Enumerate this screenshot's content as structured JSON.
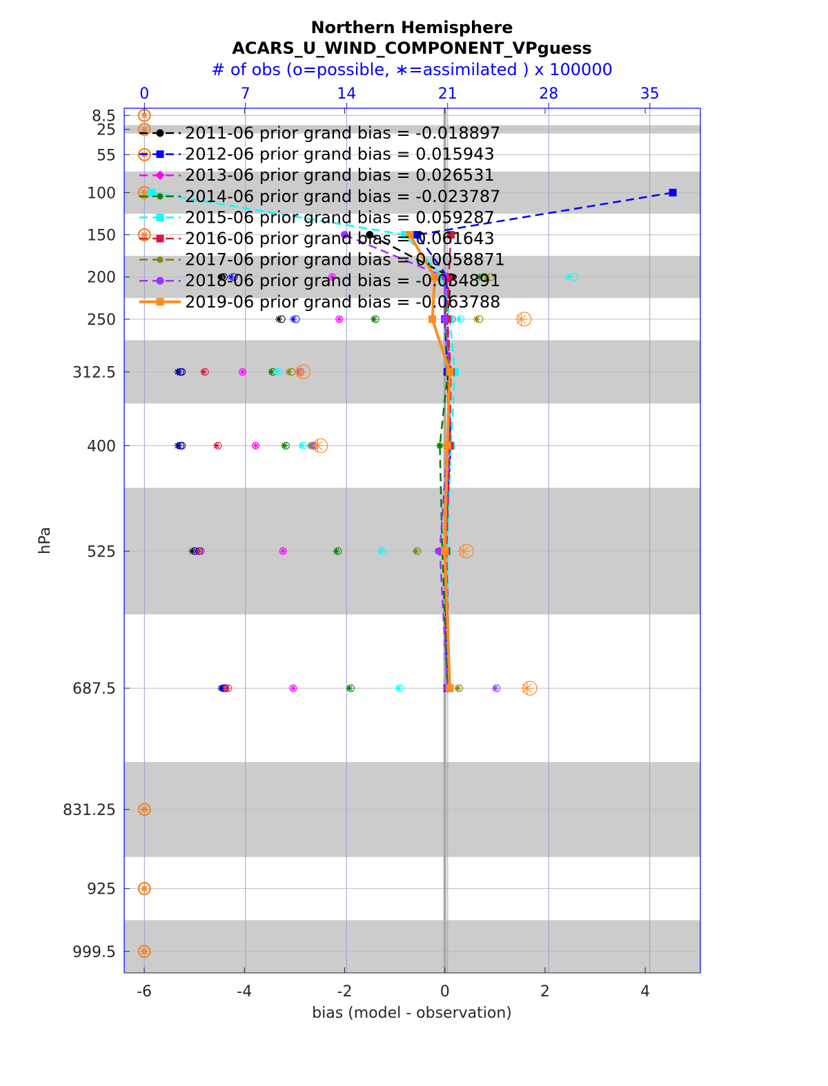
{
  "chart_data": {
    "type": "line",
    "title": "Northern Hemisphere",
    "subtitle": "ACARS_U_WIND_COMPONENT_VPguess",
    "top_axis_label": "# of obs (o=possible, ∗=assimilated ) x 100000",
    "top_axis_ticks": [
      "0",
      "7",
      "14",
      "21",
      "28",
      "35"
    ],
    "top_axis_tick_values": [
      0,
      7,
      14,
      21,
      28,
      35
    ],
    "top_xlim": [
      -1.4,
      38.5
    ],
    "xlabel": "bias (model - observation)",
    "ylabel": "hPa",
    "xlim": [
      -6.4,
      5.1
    ],
    "x_ticks": [
      "-6",
      "-4",
      "-2",
      "0",
      "2",
      "4"
    ],
    "x_tick_values": [
      -6,
      -4,
      -2,
      0,
      2,
      4
    ],
    "ylim": [
      0,
      1025
    ],
    "y_direction": "reverse",
    "y_ticks": [
      "8.5",
      "25",
      "55",
      "100",
      "150",
      "200",
      "250",
      "312.5",
      "400",
      "525",
      "687.5",
      "831.25",
      "925",
      "999.5"
    ],
    "y_tick_values": [
      8.5,
      25,
      55,
      100,
      150,
      200,
      250,
      312.5,
      400,
      525,
      687.5,
      831.25,
      925,
      999.5
    ],
    "shaded_bands": [
      [
        20,
        30
      ],
      [
        75,
        125
      ],
      [
        175,
        225
      ],
      [
        275,
        350
      ],
      [
        450,
        600
      ],
      [
        775,
        887.5
      ],
      [
        962.5,
        1037.5
      ]
    ],
    "zero_line": 0,
    "legend_position": "top-left",
    "series": [
      {
        "name": "2011-06 prior grand bias = -0.018897",
        "color": "#000000",
        "marker": "circle",
        "dash": true,
        "levels": [
          150,
          200,
          250,
          312.5,
          400,
          525,
          687.5
        ],
        "bias": [
          -1.5,
          0.12,
          0.05,
          0.08,
          0.05,
          0.0,
          0.05
        ],
        "possible": [
          null,
          5.5,
          9.5,
          2.5,
          2.5,
          3.5,
          5.5
        ],
        "assimilated": [
          null,
          5.3,
          9.3,
          2.3,
          2.3,
          3.3,
          5.3
        ]
      },
      {
        "name": "2012-06 prior grand bias = 0.015943",
        "color": "#0000ff",
        "marker": "square",
        "dash": true,
        "levels": [
          100,
          150,
          200,
          250,
          312.5,
          400,
          525,
          687.5
        ],
        "bias": [
          4.55,
          -0.55,
          0.05,
          0.0,
          0.05,
          0.12,
          0.0,
          0.05
        ],
        "possible": [
          null,
          null,
          6.2,
          10.5,
          2.6,
          2.6,
          3.8,
          5.6
        ],
        "assimilated": [
          null,
          null,
          6.0,
          10.3,
          2.4,
          2.4,
          3.6,
          5.4
        ]
      },
      {
        "name": "2013-06 prior grand bias = 0.026531",
        "color": "#ff00ff",
        "marker": "diamond",
        "dash": true,
        "levels": [
          200,
          250,
          312.5,
          400,
          525,
          687.5
        ],
        "bias": [
          0.05,
          0.05,
          0.1,
          0.08,
          0.0,
          0.05
        ],
        "possible": [
          13.0,
          13.5,
          6.8,
          7.7,
          9.6,
          10.3
        ],
        "assimilated": [
          13.0,
          13.5,
          6.8,
          7.7,
          9.6,
          10.3
        ]
      },
      {
        "name": "2014-06 prior grand bias = -0.023787",
        "color": "#008000",
        "marker": "star",
        "dash": true,
        "levels": [
          200,
          250,
          312.5,
          400,
          525,
          687.5
        ],
        "bias": [
          0.0,
          0.02,
          0.06,
          -0.1,
          -0.05,
          0.05
        ],
        "possible": [
          23.5,
          16.0,
          8.9,
          9.8,
          13.4,
          14.3
        ],
        "assimilated": [
          23.2,
          15.9,
          8.8,
          9.7,
          13.3,
          14.2
        ]
      },
      {
        "name": "2015-06 prior grand bias = 0.059287",
        "color": "#00ffff",
        "marker": "square",
        "dash": true,
        "levels": [
          100,
          150,
          200,
          250,
          312.5,
          400,
          525,
          687.5
        ],
        "bias": [
          -5.85,
          -0.8,
          -0.05,
          0.1,
          0.2,
          0.12,
          0.05,
          0.08
        ],
        "possible": [
          null,
          null,
          29.8,
          21.9,
          9.3,
          11.0,
          16.5,
          17.7
        ],
        "assimilated": [
          null,
          null,
          29.4,
          21.8,
          9.2,
          10.9,
          16.4,
          17.6
        ]
      },
      {
        "name": "2016-06 prior grand bias = 0.061643",
        "color": "#dc143c",
        "marker": "square",
        "dash": true,
        "levels": [
          150,
          200,
          250,
          312.5,
          400,
          525,
          687.5
        ],
        "bias": [
          0.12,
          0.08,
          0.05,
          0.12,
          0.1,
          0.03,
          0.1
        ],
        "possible": [
          null,
          null,
          21.3,
          4.2,
          5.1,
          3.9,
          5.8
        ],
        "assimilated": [
          null,
          null,
          21.1,
          4.1,
          5.0,
          3.8,
          5.7
        ]
      },
      {
        "name": "2017-06 prior grand bias = 0.0058871",
        "color": "#808000",
        "marker": "star",
        "dash": true,
        "levels": [
          200,
          250,
          312.5,
          400,
          525,
          687.5
        ],
        "bias": [
          0.0,
          0.0,
          0.1,
          0.05,
          0.0,
          0.1
        ],
        "possible": [
          24.0,
          23.2,
          10.2,
          11.6,
          18.9,
          21.8
        ],
        "assimilated": [
          23.7,
          23.0,
          10.0,
          11.5,
          18.8,
          21.7
        ]
      },
      {
        "name": "2018-06 prior grand bias = -0.034891",
        "color": "#9b30ff",
        "marker": "circle",
        "dash": true,
        "levels": [
          150,
          200,
          250,
          312.5,
          400,
          525,
          687.5
        ],
        "bias": [
          -2.0,
          0.0,
          0.0,
          0.1,
          0.05,
          -0.1,
          0.05
        ],
        "possible": [
          null,
          null,
          21.1,
          10.8,
          11.8,
          20.4,
          24.4
        ],
        "assimilated": [
          null,
          null,
          21.0,
          10.7,
          11.7,
          20.3,
          24.3
        ]
      },
      {
        "name": "2019-06 prior grand bias = -0.063788",
        "color": "#ff8c1a",
        "marker": "square",
        "dash": false,
        "levels": [
          150,
          200,
          250,
          312.5,
          400,
          525,
          687.5
        ],
        "bias": [
          -0.7,
          -0.2,
          -0.25,
          0.1,
          0.05,
          0.0,
          0.1
        ],
        "possible": [
          null,
          null,
          26.3,
          11.0,
          12.2,
          22.3,
          26.7
        ],
        "assimilated": [
          null,
          null,
          26.1,
          10.8,
          12.0,
          22.1,
          26.5
        ]
      }
    ],
    "zero_count_levels": [
      8.5,
      25,
      55,
      100,
      150,
      831.25,
      925,
      999.5
    ]
  }
}
